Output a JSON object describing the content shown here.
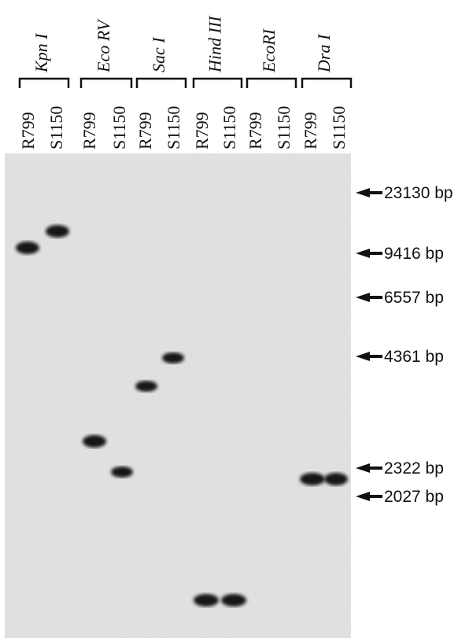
{
  "enzymes": [
    {
      "name": "Kpn I",
      "lanes": [
        "R799",
        "S1150"
      ]
    },
    {
      "name": "Eco RV",
      "lanes": [
        "R799",
        "S1150"
      ]
    },
    {
      "name": "Sac I",
      "lanes": [
        "R799",
        "S1150"
      ]
    },
    {
      "name": "Hind III",
      "lanes": [
        "R799",
        "S1150"
      ]
    },
    {
      "name": "EcoRI",
      "lanes": [
        "R799",
        "S1150"
      ]
    },
    {
      "name": "Dra I",
      "lanes": [
        "R799",
        "S1150"
      ]
    }
  ],
  "markers": [
    "23130 bp",
    "9416 bp",
    "6557 bp",
    "4361 bp",
    "2322 bp",
    "2027 bp"
  ]
}
